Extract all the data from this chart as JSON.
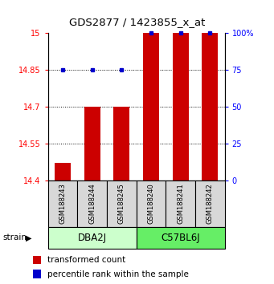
{
  "title": "GDS2877 / 1423855_x_at",
  "samples": [
    "GSM188243",
    "GSM188244",
    "GSM188245",
    "GSM188240",
    "GSM188241",
    "GSM188242"
  ],
  "groups": [
    "DBA2J",
    "C57BL6J"
  ],
  "transformed_counts": [
    14.47,
    14.7,
    14.7,
    15.0,
    15.0,
    15.0
  ],
  "percentile_ranks": [
    75,
    75,
    75,
    100,
    100,
    100
  ],
  "bar_color": "#cc0000",
  "dot_color": "#0000cc",
  "y_min": 14.4,
  "y_max": 15.0,
  "y_ticks": [
    14.4,
    14.55,
    14.7,
    14.85,
    15.0
  ],
  "y_tick_labels": [
    "14.4",
    "14.55",
    "14.7",
    "14.85",
    "15"
  ],
  "y2_ticks": [
    0,
    25,
    50,
    75,
    100
  ],
  "y2_tick_labels": [
    "0",
    "25",
    "50",
    "75",
    "100%"
  ],
  "dotted_lines": [
    14.55,
    14.7,
    14.85
  ],
  "bar_width": 0.55,
  "background_color": "#ffffff",
  "group_colors": [
    "#ccffcc",
    "#66ee66"
  ],
  "legend_red_label": "transformed count",
  "legend_blue_label": "percentile rank within the sample"
}
